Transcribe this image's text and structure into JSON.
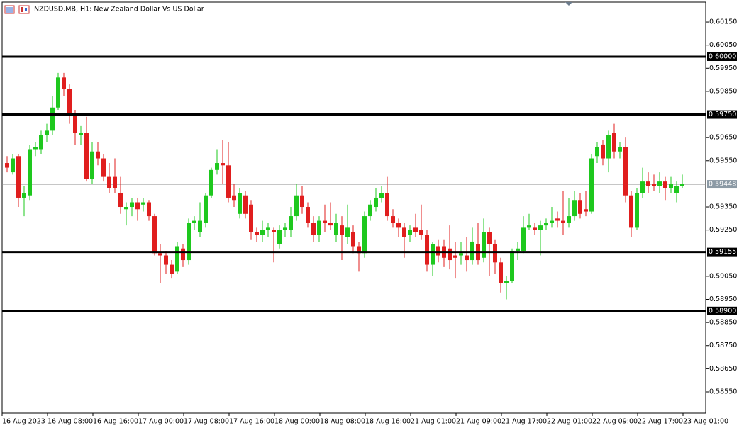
{
  "chart_data": {
    "type": "candlestick",
    "title": "NZDUSD.MB, H1:  New Zealand Dollar Vs US Dollar",
    "x_labels": [
      "16 Aug 2023",
      "16 Aug 08:00",
      "16 Aug 16:00",
      "17 Aug 00:00",
      "17 Aug 08:00",
      "17 Aug 16:00",
      "18 Aug 00:00",
      "18 Aug 08:00",
      "18 Aug 16:00",
      "21 Aug 01:00",
      "21 Aug 09:00",
      "21 Aug 17:00",
      "22 Aug 01:00",
      "22 Aug 09:00",
      "22 Aug 17:00",
      "23 Aug 01:00"
    ],
    "ylim": [
      0.58458,
      0.60236
    ],
    "yticks": [
      {
        "value": 0.6015,
        "label": "0.60150"
      },
      {
        "value": 0.6005,
        "label": "0.60050"
      },
      {
        "value": 0.5995,
        "label": "0.59950"
      },
      {
        "value": 0.5985,
        "label": "0.59850"
      },
      {
        "value": 0.5965,
        "label": "0.59650"
      },
      {
        "value": 0.5955,
        "label": "0.59550"
      },
      {
        "value": 0.5935,
        "label": "0.59350"
      },
      {
        "value": 0.5925,
        "label": "0.59250"
      },
      {
        "value": 0.5905,
        "label": "0.59050"
      },
      {
        "value": 0.5895,
        "label": "0.58950"
      },
      {
        "value": 0.5885,
        "label": "0.58850"
      },
      {
        "value": 0.5875,
        "label": "0.58750"
      },
      {
        "value": 0.5865,
        "label": "0.58650"
      },
      {
        "value": 0.5855,
        "label": "0.58550"
      }
    ],
    "levels": [
      {
        "value": 0.6,
        "label": "0.60000"
      },
      {
        "value": 0.5975,
        "label": "0.59750"
      },
      {
        "value": 0.59155,
        "label": "0.59155"
      },
      {
        "value": 0.589,
        "label": "0.58900"
      }
    ],
    "current_price": {
      "value": 0.59448,
      "label": "0.59448"
    },
    "up_color": "#1ec81e",
    "down_color": "#e01e1e",
    "open": [
      0.5954,
      0.595,
      0.5957,
      0.5939,
      0.594,
      0.596,
      0.596,
      0.5966,
      0.5968,
      0.5978,
      0.5991,
      0.5986,
      0.5975,
      0.5966,
      0.5967,
      0.5947,
      0.5959,
      0.5956,
      0.5948,
      0.5948,
      0.5941,
      0.5934,
      0.5935,
      0.5937,
      0.5936,
      0.5937,
      0.5931,
      0.5915,
      0.5914,
      0.591,
      0.5907,
      0.5917,
      0.5912,
      0.5928,
      0.5924,
      0.5928,
      0.594,
      0.5951,
      0.5954,
      0.5953,
      0.594,
      0.5932,
      0.594,
      0.5936,
      0.5924,
      0.5923,
      0.5925,
      0.5925,
      0.5919,
      0.5925,
      0.5925,
      0.5931,
      0.594,
      0.5935,
      0.5928,
      0.5923,
      0.5929,
      0.5928,
      0.5923,
      0.5927,
      0.5922,
      0.5924,
      0.5918,
      0.5915,
      0.5931,
      0.5935,
      0.5939,
      0.5941,
      0.5931,
      0.5928,
      0.5926,
      0.5923,
      0.5926,
      0.5925,
      0.5923,
      0.591,
      0.5918,
      0.5918,
      0.5917,
      0.5914,
      0.5914,
      0.5914,
      0.5912,
      0.5919,
      0.5913,
      0.5924,
      0.5919,
      0.5911,
      0.5902,
      0.5903,
      0.5916,
      0.5916,
      0.5926,
      0.5926,
      0.5925,
      0.5927,
      0.5928,
      0.593,
      0.5929,
      0.5928,
      0.5931,
      0.5938,
      0.5934,
      0.5933,
      0.5957,
      0.5962,
      0.5956,
      0.5967,
      0.5959,
      0.5961,
      0.594,
      0.5926,
      0.5941,
      0.5946,
      0.5945,
      0.5944,
      0.5946,
      0.5943,
      0.5941,
      0.5944
    ],
    "high": [
      0.5957,
      0.5958,
      0.5958,
      0.5944,
      0.5962,
      0.5963,
      0.5968,
      0.5971,
      0.5983,
      0.5993,
      0.5993,
      0.5988,
      0.5977,
      0.597,
      0.5974,
      0.5963,
      0.5963,
      0.5958,
      0.5954,
      0.5956,
      0.5948,
      0.5937,
      0.5939,
      0.5939,
      0.5939,
      0.5938,
      0.5932,
      0.5919,
      0.5916,
      0.5912,
      0.592,
      0.5919,
      0.593,
      0.5931,
      0.5937,
      0.5941,
      0.5952,
      0.596,
      0.5964,
      0.5963,
      0.5945,
      0.5943,
      0.5942,
      0.5938,
      0.5926,
      0.5929,
      0.5928,
      0.5926,
      0.5927,
      0.5928,
      0.5935,
      0.5945,
      0.5944,
      0.5937,
      0.5931,
      0.5931,
      0.5936,
      0.5937,
      0.5932,
      0.5931,
      0.5936,
      0.5927,
      0.592,
      0.5933,
      0.5938,
      0.5943,
      0.5944,
      0.5948,
      0.5934,
      0.593,
      0.5928,
      0.5927,
      0.5932,
      0.5936,
      0.5925,
      0.592,
      0.5921,
      0.5921,
      0.5927,
      0.592,
      0.592,
      0.5922,
      0.5926,
      0.5928,
      0.593,
      0.5926,
      0.5921,
      0.5913,
      0.5905,
      0.5917,
      0.592,
      0.5931,
      0.5932,
      0.5928,
      0.5929,
      0.593,
      0.5935,
      0.5933,
      0.5942,
      0.5939,
      0.5942,
      0.5941,
      0.5942,
      0.5958,
      0.5963,
      0.5964,
      0.5968,
      0.5971,
      0.5963,
      0.5965,
      0.5942,
      0.5943,
      0.5952,
      0.595,
      0.5949,
      0.595,
      0.5948,
      0.5948,
      0.5946,
      0.5949
    ],
    "low": [
      0.595,
      0.5949,
      0.5935,
      0.5931,
      0.5938,
      0.5957,
      0.5958,
      0.5963,
      0.5966,
      0.5977,
      0.5983,
      0.5971,
      0.5962,
      0.5962,
      0.5946,
      0.5945,
      0.5953,
      0.5946,
      0.5941,
      0.5941,
      0.5932,
      0.5927,
      0.5931,
      0.5929,
      0.5933,
      0.5929,
      0.5914,
      0.5902,
      0.5906,
      0.5904,
      0.5906,
      0.5909,
      0.591,
      0.5925,
      0.5922,
      0.5926,
      0.5939,
      0.5949,
      0.5945,
      0.5937,
      0.5935,
      0.593,
      0.593,
      0.5921,
      0.592,
      0.592,
      0.5922,
      0.5911,
      0.5917,
      0.5922,
      0.5922,
      0.5929,
      0.5932,
      0.5926,
      0.592,
      0.592,
      0.5924,
      0.5925,
      0.592,
      0.5912,
      0.5919,
      0.5915,
      0.5907,
      0.5913,
      0.5929,
      0.5933,
      0.5937,
      0.5929,
      0.5926,
      0.5922,
      0.5913,
      0.592,
      0.5922,
      0.5921,
      0.5907,
      0.5905,
      0.5911,
      0.5909,
      0.5908,
      0.5904,
      0.591,
      0.5907,
      0.591,
      0.591,
      0.5911,
      0.5905,
      0.5906,
      0.5898,
      0.5895,
      0.5902,
      0.5912,
      0.5915,
      0.5925,
      0.5923,
      0.5914,
      0.5925,
      0.5926,
      0.5926,
      0.5923,
      0.5926,
      0.5929,
      0.593,
      0.5931,
      0.5932,
      0.5954,
      0.5953,
      0.595,
      0.5956,
      0.5956,
      0.5937,
      0.5922,
      0.5925,
      0.5939,
      0.5941,
      0.5942,
      0.5941,
      0.5938,
      0.5941,
      0.5937,
      0.5943
    ],
    "close": [
      0.5952,
      0.5956,
      0.5939,
      0.5941,
      0.596,
      0.5961,
      0.5966,
      0.5968,
      0.5978,
      0.5991,
      0.5986,
      0.5975,
      0.5967,
      0.5967,
      0.5947,
      0.5959,
      0.5956,
      0.5948,
      0.5943,
      0.5943,
      0.5935,
      0.5935,
      0.5937,
      0.5934,
      0.5937,
      0.5931,
      0.5915,
      0.5914,
      0.591,
      0.5906,
      0.5918,
      0.5912,
      0.5928,
      0.5929,
      0.5929,
      0.594,
      0.5951,
      0.5954,
      0.5953,
      0.5939,
      0.5938,
      0.5941,
      0.5932,
      0.5924,
      0.5923,
      0.5925,
      0.5926,
      0.5924,
      0.5925,
      0.5926,
      0.5931,
      0.594,
      0.5935,
      0.5928,
      0.5923,
      0.5929,
      0.5928,
      0.5927,
      0.5928,
      0.5923,
      0.5926,
      0.5918,
      0.5915,
      0.5931,
      0.5936,
      0.5939,
      0.5941,
      0.5931,
      0.5928,
      0.5926,
      0.5922,
      0.5925,
      0.5924,
      0.5923,
      0.591,
      0.5919,
      0.5914,
      0.5913,
      0.5912,
      0.5913,
      0.5915,
      0.5912,
      0.592,
      0.5912,
      0.5924,
      0.5919,
      0.5911,
      0.5902,
      0.5903,
      0.5916,
      0.5917,
      0.5926,
      0.5927,
      0.5925,
      0.5927,
      0.5928,
      0.5929,
      0.5929,
      0.5928,
      0.5931,
      0.5938,
      0.5932,
      0.5933,
      0.5956,
      0.5961,
      0.5956,
      0.5966,
      0.5959,
      0.5961,
      0.594,
      0.5926,
      0.5941,
      0.5946,
      0.5944,
      0.5944,
      0.5946,
      0.5943,
      0.5945,
      0.5944,
      0.59448
    ]
  }
}
